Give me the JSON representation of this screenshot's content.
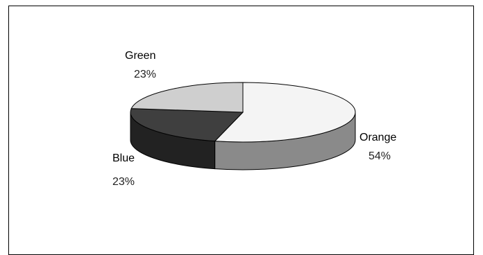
{
  "chart_data": {
    "type": "pie",
    "style": "3d",
    "slices": [
      {
        "label": "Orange",
        "percent_label": "54%",
        "value": 54,
        "top_color": "#f4f4f4",
        "side_color": "#8a8a8a"
      },
      {
        "label": "Blue",
        "percent_label": "23%",
        "value": 23,
        "top_color": "#3f3f3f",
        "side_color": "#222222"
      },
      {
        "label": "Green",
        "percent_label": "23%",
        "value": 23,
        "top_color": "#cfcfcf",
        "side_color": "#9a9a9a"
      }
    ],
    "legend": "none"
  }
}
